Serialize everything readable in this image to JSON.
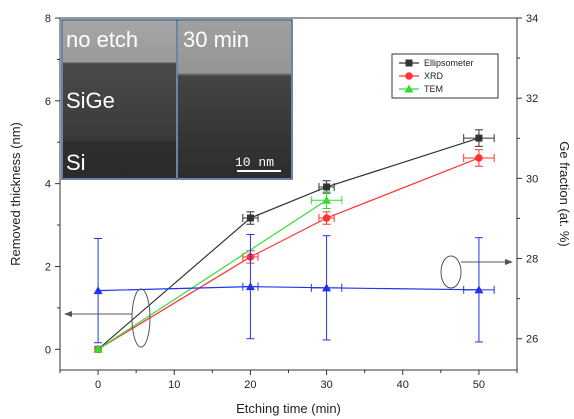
{
  "chart_data": {
    "type": "line",
    "x": [
      0,
      20,
      30,
      50
    ],
    "xlim": [
      -5,
      55
    ],
    "x_ticks": [
      0,
      10,
      20,
      30,
      40,
      50
    ],
    "xlabel": "Etching time (min)",
    "ylabel_left": "Removed thickness (nm)",
    "ylim_left": [
      -0.5,
      8
    ],
    "y_ticks_left": [
      0,
      2,
      4,
      6,
      8
    ],
    "ylabel_right": "Ge fraction (at. %)",
    "ylim_right": [
      25.22,
      34
    ],
    "y_ticks_right": [
      26,
      28,
      30,
      32,
      34
    ],
    "series": [
      {
        "name": "Ellipsometer",
        "axis": "left",
        "color": "#333333",
        "marker": "square",
        "x": [
          0,
          20,
          30,
          50
        ],
        "y": [
          0,
          3.17,
          3.92,
          5.1
        ],
        "yerr": [
          0.05,
          0.15,
          0.15,
          0.2
        ],
        "xerr": [
          0,
          1,
          1,
          2
        ]
      },
      {
        "name": "XRD",
        "axis": "left",
        "color": "#ff3333",
        "marker": "circle",
        "x": [
          0,
          20,
          30,
          50
        ],
        "y": [
          0,
          2.23,
          3.17,
          4.62
        ],
        "yerr": [
          0.05,
          0.15,
          0.15,
          0.2
        ],
        "xerr": [
          0,
          1,
          1,
          2
        ]
      },
      {
        "name": "TEM",
        "axis": "left",
        "color": "#33dd33",
        "marker": "triangle",
        "x": [
          0,
          30
        ],
        "y": [
          0,
          3.6
        ],
        "yerr": [
          0.05,
          0.2
        ],
        "xerr": [
          0,
          2
        ]
      },
      {
        "name": "Ge fraction",
        "axis": "right",
        "color": "#2233ee",
        "marker": "triangle",
        "x": [
          0,
          20,
          30,
          50
        ],
        "y": [
          27.2,
          27.3,
          27.27,
          27.22
        ],
        "yerr": [
          1.3,
          1.3,
          1.3,
          1.3
        ],
        "xerr": [
          0,
          1,
          2,
          2
        ]
      }
    ],
    "inset": {
      "labels": [
        "no etch",
        "30 min",
        "SiGe",
        "Si"
      ],
      "scale_bar": "10 nm"
    },
    "legend_placement": "top-right"
  }
}
